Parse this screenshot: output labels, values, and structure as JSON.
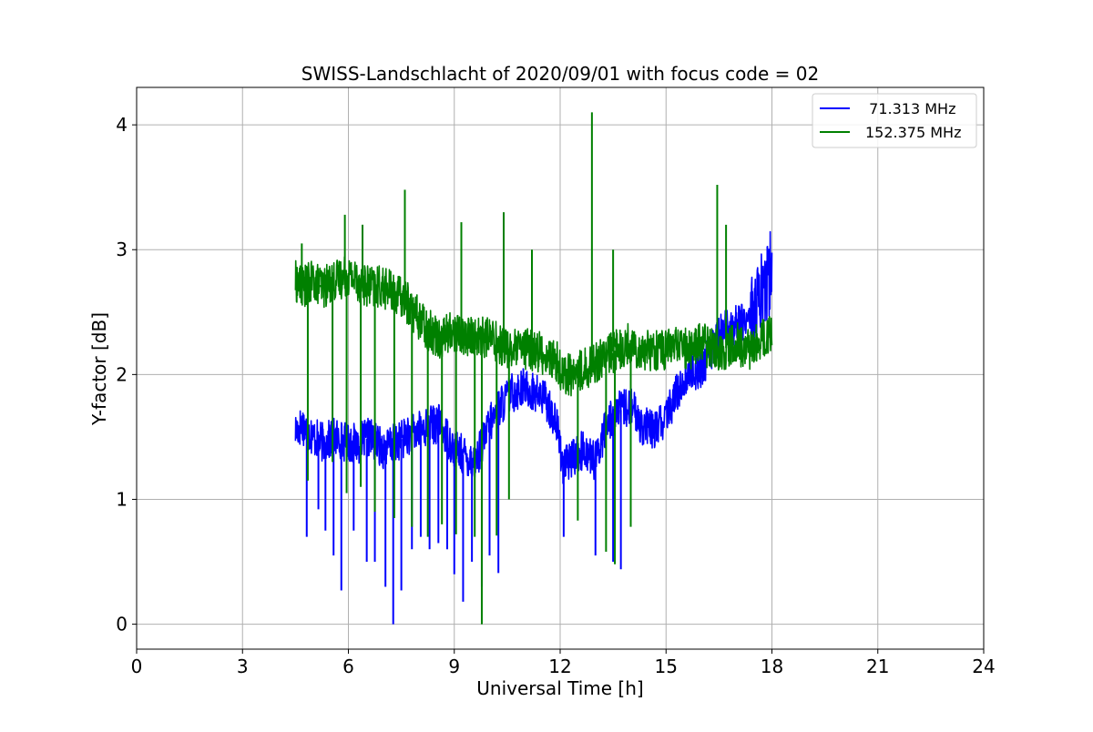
{
  "chart_data": {
    "type": "line",
    "title": "SWISS-Landschlacht of 2020/09/01 with focus code = 02",
    "xlabel": "Universal Time [h]",
    "ylabel": "Y-factor [dB]",
    "xlim": [
      0,
      24
    ],
    "ylim": [
      -0.2,
      4.3
    ],
    "xticks": [
      0,
      3,
      6,
      9,
      12,
      15,
      18,
      21,
      24
    ],
    "yticks": [
      0,
      1,
      2,
      3,
      4
    ],
    "grid": true,
    "legend_position": "top-right",
    "series": [
      {
        "name": "  71.313 MHz",
        "color": "#0000ff",
        "x": [
          4.5,
          4.7,
          5.0,
          5.3,
          5.6,
          6.0,
          6.3,
          6.6,
          7.0,
          7.3,
          7.6,
          8.0,
          8.3,
          8.6,
          9.0,
          9.3,
          9.6,
          10.0,
          10.3,
          10.6,
          11.0,
          11.3,
          11.6,
          11.9,
          12.1,
          12.4,
          12.7,
          13.0,
          13.3,
          13.6,
          14.0,
          14.3,
          14.6,
          15.0,
          15.3,
          15.6,
          16.0,
          16.3,
          16.6,
          17.0,
          17.3,
          17.6,
          17.8,
          18.0
        ],
        "values": [
          1.55,
          1.6,
          1.5,
          1.45,
          1.5,
          1.45,
          1.45,
          1.5,
          1.4,
          1.45,
          1.5,
          1.55,
          1.6,
          1.6,
          1.4,
          1.35,
          1.3,
          1.6,
          1.75,
          1.85,
          1.9,
          1.85,
          1.8,
          1.6,
          1.25,
          1.35,
          1.4,
          1.3,
          1.6,
          1.7,
          1.75,
          1.6,
          1.55,
          1.65,
          1.85,
          2.0,
          2.05,
          2.2,
          2.35,
          2.4,
          2.45,
          2.55,
          2.7,
          2.85
        ],
        "spikes": [
          {
            "x": 4.82,
            "y": 0.7
          },
          {
            "x": 5.15,
            "y": 0.92
          },
          {
            "x": 5.35,
            "y": 0.75
          },
          {
            "x": 5.58,
            "y": 0.55
          },
          {
            "x": 5.8,
            "y": 0.27
          },
          {
            "x": 6.15,
            "y": 0.75
          },
          {
            "x": 6.52,
            "y": 0.5
          },
          {
            "x": 6.75,
            "y": 0.5
          },
          {
            "x": 7.05,
            "y": 0.3
          },
          {
            "x": 7.27,
            "y": 0.0
          },
          {
            "x": 7.5,
            "y": 0.27
          },
          {
            "x": 7.8,
            "y": 0.6
          },
          {
            "x": 8.05,
            "y": 0.7
          },
          {
            "x": 8.3,
            "y": 0.6
          },
          {
            "x": 8.55,
            "y": 0.65
          },
          {
            "x": 8.8,
            "y": 0.6
          },
          {
            "x": 9.0,
            "y": 0.4
          },
          {
            "x": 9.25,
            "y": 0.18
          },
          {
            "x": 9.5,
            "y": 0.5
          },
          {
            "x": 9.78,
            "y": 0.3
          },
          {
            "x": 10.0,
            "y": 0.55
          },
          {
            "x": 10.25,
            "y": 0.41
          },
          {
            "x": 12.1,
            "y": 0.7
          },
          {
            "x": 13.0,
            "y": 0.55
          },
          {
            "x": 13.5,
            "y": 0.5
          },
          {
            "x": 13.72,
            "y": 0.44
          }
        ]
      },
      {
        "name": "152.375 MHz",
        "color": "#008000",
        "x": [
          4.5,
          4.7,
          5.0,
          5.3,
          5.6,
          6.0,
          6.3,
          6.6,
          7.0,
          7.3,
          7.6,
          8.0,
          8.3,
          8.6,
          9.0,
          9.3,
          9.6,
          10.0,
          10.3,
          10.6,
          11.0,
          11.3,
          11.6,
          11.9,
          12.1,
          12.4,
          12.7,
          13.0,
          13.3,
          13.6,
          14.0,
          14.3,
          14.6,
          15.0,
          15.3,
          15.6,
          16.0,
          16.3,
          16.6,
          17.0,
          17.3,
          17.6,
          17.8,
          18.0
        ],
        "values": [
          2.75,
          2.7,
          2.75,
          2.7,
          2.75,
          2.8,
          2.75,
          2.7,
          2.7,
          2.65,
          2.6,
          2.45,
          2.35,
          2.3,
          2.35,
          2.3,
          2.3,
          2.3,
          2.25,
          2.2,
          2.2,
          2.2,
          2.15,
          2.1,
          2.0,
          2.0,
          2.05,
          2.1,
          2.15,
          2.2,
          2.25,
          2.2,
          2.2,
          2.2,
          2.25,
          2.2,
          2.25,
          2.2,
          2.2,
          2.25,
          2.2,
          2.25,
          2.3,
          2.3
        ],
        "spikes": [
          {
            "x": 4.68,
            "y": 3.05
          },
          {
            "x": 5.2,
            "y": 2.7
          },
          {
            "x": 5.9,
            "y": 3.28
          },
          {
            "x": 6.4,
            "y": 3.2
          },
          {
            "x": 7.6,
            "y": 3.48
          },
          {
            "x": 9.2,
            "y": 3.22
          },
          {
            "x": 10.4,
            "y": 3.3
          },
          {
            "x": 11.2,
            "y": 3.0
          },
          {
            "x": 12.9,
            "y": 4.1
          },
          {
            "x": 13.5,
            "y": 3.0
          },
          {
            "x": 16.45,
            "y": 3.52
          },
          {
            "x": 16.7,
            "y": 3.2
          },
          {
            "x": 4.85,
            "y": 1.15
          },
          {
            "x": 5.55,
            "y": 1.3
          },
          {
            "x": 5.95,
            "y": 1.05
          },
          {
            "x": 6.35,
            "y": 1.1
          },
          {
            "x": 6.75,
            "y": 0.9
          },
          {
            "x": 7.3,
            "y": 0.85
          },
          {
            "x": 7.8,
            "y": 0.78
          },
          {
            "x": 8.25,
            "y": 0.7
          },
          {
            "x": 8.65,
            "y": 0.8
          },
          {
            "x": 9.05,
            "y": 0.72
          },
          {
            "x": 9.58,
            "y": 0.7
          },
          {
            "x": 9.78,
            "y": 0.0
          },
          {
            "x": 10.2,
            "y": 0.71
          },
          {
            "x": 10.55,
            "y": 1.0
          },
          {
            "x": 12.5,
            "y": 0.83
          },
          {
            "x": 13.3,
            "y": 0.58
          },
          {
            "x": 13.55,
            "y": 0.48
          },
          {
            "x": 14.0,
            "y": 0.78
          }
        ]
      }
    ]
  }
}
